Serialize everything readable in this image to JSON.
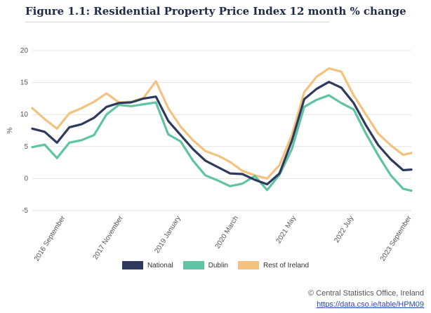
{
  "figure": {
    "title": "Figure 1.1: Residential Property Price Index 12 month % change"
  },
  "footer": {
    "copyright": "© Central Statistics Office, Ireland",
    "link": "https://data.cso.ie/table/HPM09"
  },
  "chart_data": {
    "type": "line",
    "title": "",
    "xlabel": "",
    "ylabel": "%",
    "ylim": [
      -5,
      20
    ],
    "yticks": [
      -5,
      0,
      5,
      10,
      15,
      20
    ],
    "grid": "horizontal",
    "legend_position": "bottom",
    "x": [
      "2016-01",
      "2016-04",
      "2016-07",
      "2016-10",
      "2017-01",
      "2017-04",
      "2017-07",
      "2017-10",
      "2018-01",
      "2018-04",
      "2018-07",
      "2018-10",
      "2019-01",
      "2019-04",
      "2019-07",
      "2019-10",
      "2020-01",
      "2020-04",
      "2020-07",
      "2020-10",
      "2021-01",
      "2021-04",
      "2021-07",
      "2021-10",
      "2022-01",
      "2022-04",
      "2022-07",
      "2022-10",
      "2023-01",
      "2023-04",
      "2023-07",
      "2023-09"
    ],
    "x_tick_labels": [
      "2016 September",
      "2017 November",
      "2019 January",
      "2020 March",
      "2021 May",
      "2022 July",
      "2023 September"
    ],
    "x_tick_positions": [
      "2016-09",
      "2017-11",
      "2019-01",
      "2020-03",
      "2021-05",
      "2022-07",
      "2023-09"
    ],
    "series": [
      {
        "name": "National",
        "color": "#2d3a5e",
        "values": [
          7.8,
          7.3,
          5.6,
          8.0,
          8.5,
          9.5,
          11.2,
          11.8,
          11.9,
          12.5,
          12.8,
          9.0,
          6.8,
          4.6,
          2.8,
          1.8,
          0.8,
          0.7,
          -0.2,
          -0.9,
          0.8,
          5.9,
          12.4,
          14.0,
          15.1,
          14.2,
          11.8,
          8.3,
          5.2,
          3.0,
          1.3,
          1.4
        ]
      },
      {
        "name": "Dublin",
        "color": "#5fc4a3",
        "values": [
          4.9,
          5.3,
          3.2,
          5.6,
          6.0,
          6.8,
          10.0,
          11.5,
          11.3,
          11.6,
          11.9,
          6.9,
          5.8,
          2.8,
          0.5,
          -0.3,
          -1.2,
          -0.8,
          0.4,
          -1.8,
          0.6,
          4.6,
          11.2,
          12.3,
          13.0,
          11.8,
          10.8,
          7.0,
          3.6,
          0.5,
          -1.6,
          -1.9
        ]
      },
      {
        "name": "Rest of Ireland",
        "color": "#f2c27e",
        "values": [
          11.0,
          9.3,
          7.8,
          10.2,
          11.0,
          12.0,
          13.3,
          11.9,
          12.0,
          12.6,
          15.2,
          11.0,
          8.1,
          6.0,
          4.3,
          3.6,
          2.6,
          1.2,
          0.5,
          0.0,
          2.1,
          6.8,
          13.5,
          15.9,
          17.2,
          16.7,
          13.0,
          10.0,
          7.0,
          5.2,
          3.7,
          4.0
        ]
      }
    ]
  }
}
